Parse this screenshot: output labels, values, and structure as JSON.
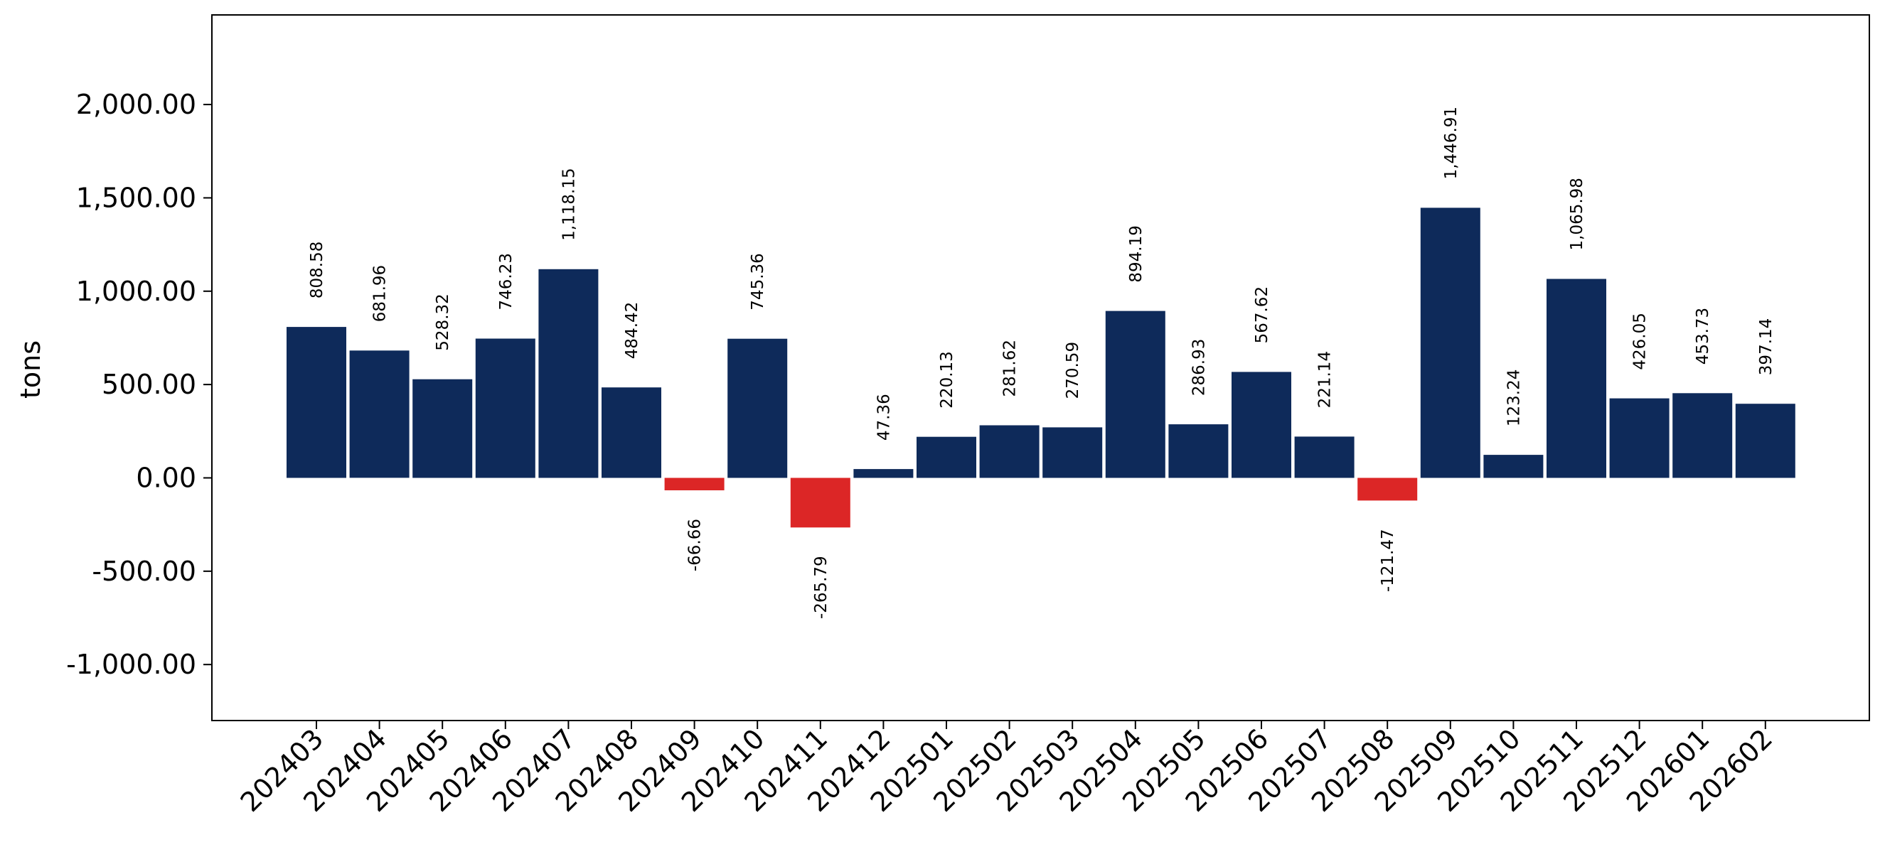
{
  "chart_data": {
    "type": "bar",
    "xlabel": "",
    "ylabel": "tons",
    "ylim": [
      -1300,
      2480
    ],
    "yticks": [
      -1000,
      -500,
      0,
      500,
      1000,
      1500,
      2000
    ],
    "ytick_labels": [
      "-1,000.00",
      "-500.00",
      "0.00",
      "500.00",
      "1,000.00",
      "1,500.00",
      "2,000.00"
    ],
    "categories": [
      "202403",
      "202404",
      "202405",
      "202406",
      "202407",
      "202408",
      "202409",
      "202410",
      "202411",
      "202412",
      "202501",
      "202502",
      "202503",
      "202504",
      "202505",
      "202506",
      "202507",
      "202508",
      "202509",
      "202510",
      "202511",
      "202512",
      "202601",
      "202602"
    ],
    "values": [
      808.58,
      681.96,
      528.32,
      746.23,
      1118.15,
      484.42,
      -66.66,
      745.36,
      -265.79,
      47.36,
      220.13,
      281.62,
      270.59,
      894.19,
      286.93,
      567.62,
      221.14,
      -121.47,
      1446.91,
      123.24,
      1065.98,
      426.05,
      453.73,
      397.14
    ],
    "value_labels": [
      "808.58",
      "681.96",
      "528.32",
      "746.23",
      "1,118.15",
      "484.42",
      "-66.66",
      "745.36",
      "-265.79",
      "47.36",
      "220.13",
      "281.62",
      "270.59",
      "894.19",
      "286.93",
      "567.62",
      "221.14",
      "-121.47",
      "1,446.91",
      "123.24",
      "1,065.98",
      "426.05",
      "453.73",
      "397.14"
    ],
    "colors": {
      "positive": "#0e2a5a",
      "negative": "#dc2626",
      "axis": "#000000"
    },
    "grid": false,
    "legend": "none"
  }
}
